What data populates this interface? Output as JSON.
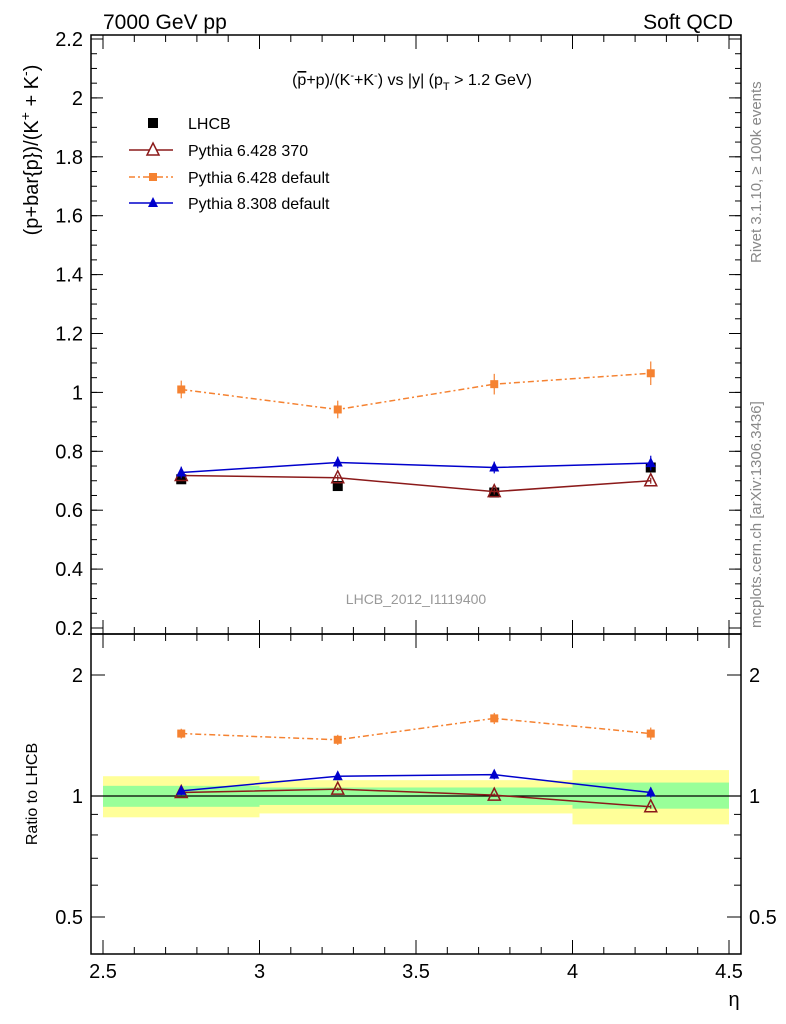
{
  "header": {
    "left": "7000 GeV pp",
    "right": "Soft QCD"
  },
  "side_labels": {
    "rivet": "Rivet 3.1.10, ≥ 100k events",
    "mcplots": "mcplots.cern.ch [arXiv:1306.3436]"
  },
  "analysis_label": "LHCB_2012_I1119400",
  "colors": {
    "lhcb": "#000000",
    "py6_370": "#8b1a1a",
    "py6_default": "#f58231",
    "py8_default": "#0000cc",
    "band_inner": "#99ff99",
    "band_outer": "#ffff99"
  },
  "chart_data": [
    {
      "type": "line",
      "title": "(p̄+p)/(K⁻+K⁻) vs |y| (pT > 1.2 GeV)",
      "xlabel": "η",
      "ylabel": "(p+bar{p})/(K⁺ + K⁻)",
      "xlim": [
        2.5,
        4.5
      ],
      "ylim": [
        0.2,
        2.2
      ],
      "yticks": [
        0.2,
        0.4,
        0.6,
        0.8,
        1.0,
        1.2,
        1.4,
        1.6,
        1.8,
        2.0,
        2.2
      ],
      "ytick_labels": [
        "0.2",
        "0.4",
        "0.6",
        "0.8",
        "1",
        "1.2",
        "1.4",
        "1.6",
        "1.8",
        "2",
        "2.2"
      ],
      "legend_position": "top-left",
      "series": [
        {
          "name": "LHCB",
          "x": [
            2.75,
            3.25,
            3.75,
            4.25
          ],
          "y": [
            0.705,
            0.682,
            0.66,
            0.745
          ],
          "err": [
            0.01,
            0.01,
            0.01,
            0.01
          ],
          "marker": "filled-square"
        },
        {
          "name": "Pythia 6.428 370",
          "x": [
            2.75,
            3.25,
            3.75,
            4.25
          ],
          "y": [
            0.718,
            0.71,
            0.663,
            0.7
          ],
          "err": [
            0.01,
            0.01,
            0.01,
            0.01
          ],
          "marker": "open-triangle"
        },
        {
          "name": "Pythia 6.428 default",
          "x": [
            2.75,
            3.25,
            3.75,
            4.25
          ],
          "y": [
            1.01,
            0.942,
            1.028,
            1.065
          ],
          "err": [
            0.03,
            0.03,
            0.035,
            0.04
          ],
          "marker": "filled-small-square"
        },
        {
          "name": "Pythia 8.308 default",
          "x": [
            2.75,
            3.25,
            3.75,
            4.25
          ],
          "y": [
            0.728,
            0.762,
            0.745,
            0.76
          ],
          "err": [
            0.02,
            0.02,
            0.02,
            0.025
          ],
          "marker": "filled-triangle"
        }
      ]
    },
    {
      "type": "line",
      "ylabel": "Ratio to LHCB",
      "xlabel": "η",
      "xlim": [
        2.5,
        4.5
      ],
      "ylim": [
        0.42,
        2.35
      ],
      "yscale": "log",
      "yticks": [
        0.5,
        1,
        2
      ],
      "ytick_labels": [
        "0.5",
        "1",
        "2"
      ],
      "xticks": [
        2.5,
        3,
        3.5,
        4,
        4.5
      ],
      "xtick_labels": [
        "2.5",
        "3",
        "3.5",
        "4",
        "4.5"
      ],
      "bands": [
        {
          "x": [
            2.5,
            3.0
          ],
          "inner": [
            0.94,
            1.06
          ],
          "outer": [
            0.885,
            1.12
          ]
        },
        {
          "x": [
            3.0,
            3.5
          ],
          "inner": [
            0.95,
            1.05
          ],
          "outer": [
            0.905,
            1.095
          ]
        },
        {
          "x": [
            3.5,
            4.0
          ],
          "inner": [
            0.95,
            1.05
          ],
          "outer": [
            0.905,
            1.095
          ]
        },
        {
          "x": [
            4.0,
            4.5
          ],
          "inner": [
            0.93,
            1.08
          ],
          "outer": [
            0.85,
            1.16
          ]
        }
      ],
      "series": [
        {
          "name": "Pythia 6.428 370",
          "x": [
            2.75,
            3.25,
            3.75,
            4.25
          ],
          "y": [
            1.02,
            1.04,
            1.005,
            0.94
          ],
          "err": [
            0.01,
            0.01,
            0.01,
            0.01
          ]
        },
        {
          "name": "Pythia 6.428 default",
          "x": [
            2.75,
            3.25,
            3.75,
            4.25
          ],
          "y": [
            1.43,
            1.38,
            1.56,
            1.43
          ],
          "err": [
            0.04,
            0.04,
            0.05,
            0.05
          ]
        },
        {
          "name": "Pythia 8.308 default",
          "x": [
            2.75,
            3.25,
            3.75,
            4.25
          ],
          "y": [
            1.03,
            1.12,
            1.13,
            1.02
          ],
          "err": [
            0.025,
            0.025,
            0.03,
            0.03
          ]
        }
      ]
    }
  ]
}
